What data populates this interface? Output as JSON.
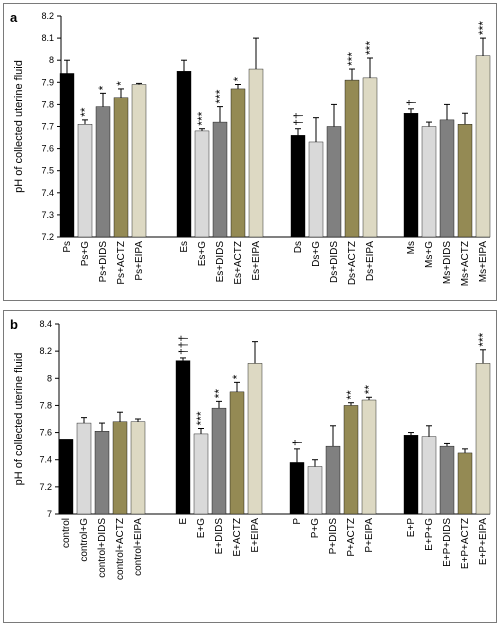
{
  "colors": {
    "black": "#000000",
    "light_gray": "#d9d9d9",
    "gray": "#808080",
    "olive": "#948a54",
    "beige": "#ddd9c3"
  },
  "chart_data": [
    {
      "type": "bar",
      "panel_label": "a",
      "ylabel": "pH of collected uterine fluid",
      "ylim": [
        7.2,
        8.2
      ],
      "yticks": [
        "7.2",
        "7.3",
        "7.4",
        "7.5",
        "7.6",
        "7.7",
        "7.8",
        "7.9",
        "8",
        "8.1",
        "8.2"
      ],
      "groups": [
        {
          "bars": [
            {
              "label": "Ps",
              "value": 7.94,
              "error": 0.06,
              "color": "black",
              "annotation": ""
            },
            {
              "label": "Ps+G",
              "value": 7.71,
              "error": 0.02,
              "color": "light_gray",
              "annotation": "**"
            },
            {
              "label": "Ps+DIDS",
              "value": 7.79,
              "error": 0.06,
              "color": "gray",
              "annotation": "*"
            },
            {
              "label": "Ps+ACTZ",
              "value": 7.83,
              "error": 0.04,
              "color": "olive",
              "annotation": "*"
            },
            {
              "label": "Ps+EIPA",
              "value": 7.89,
              "error": 0.005,
              "color": "beige",
              "annotation": ""
            }
          ]
        },
        {
          "bars": [
            {
              "label": "Es",
              "value": 7.95,
              "error": 0.05,
              "color": "black",
              "annotation": ""
            },
            {
              "label": "Es+G",
              "value": 7.68,
              "error": 0.01,
              "color": "light_gray",
              "annotation": "***"
            },
            {
              "label": "Es+DIDS",
              "value": 7.72,
              "error": 0.07,
              "color": "gray",
              "annotation": "***"
            },
            {
              "label": "Es+ACTZ",
              "value": 7.87,
              "error": 0.02,
              "color": "olive",
              "annotation": "*"
            },
            {
              "label": "Es+EIPA",
              "value": 7.96,
              "error": 0.14,
              "color": "beige",
              "annotation": ""
            }
          ]
        },
        {
          "bars": [
            {
              "label": "Ds",
              "value": 7.66,
              "error": 0.03,
              "color": "black",
              "annotation": "††"
            },
            {
              "label": "Ds+G",
              "value": 7.63,
              "error": 0.11,
              "color": "light_gray",
              "annotation": ""
            },
            {
              "label": "Ds+DIDS",
              "value": 7.7,
              "error": 0.1,
              "color": "gray",
              "annotation": ""
            },
            {
              "label": "Ds+ACTZ",
              "value": 7.91,
              "error": 0.05,
              "color": "olive",
              "annotation": "***"
            },
            {
              "label": "Ds+EIPA",
              "value": 7.92,
              "error": 0.09,
              "color": "beige",
              "annotation": "***"
            }
          ]
        },
        {
          "bars": [
            {
              "label": "Ms",
              "value": 7.76,
              "error": 0.02,
              "color": "black",
              "annotation": "†"
            },
            {
              "label": "Ms+G",
              "value": 7.7,
              "error": 0.02,
              "color": "light_gray",
              "annotation": ""
            },
            {
              "label": "Ms+DIDS",
              "value": 7.73,
              "error": 0.07,
              "color": "gray",
              "annotation": ""
            },
            {
              "label": "Ms+ACTZ",
              "value": 7.71,
              "error": 0.05,
              "color": "olive",
              "annotation": ""
            },
            {
              "label": "Ms+EIPA",
              "value": 8.02,
              "error": 0.08,
              "color": "beige",
              "annotation": "***"
            }
          ]
        }
      ]
    },
    {
      "type": "bar",
      "panel_label": "b",
      "ylabel": "pH of collected uterine fluid",
      "ylim": [
        7.0,
        8.4
      ],
      "yticks": [
        "7",
        "7.2",
        "7.4",
        "7.6",
        "7.8",
        "8",
        "8.2",
        "8.4"
      ],
      "groups": [
        {
          "bars": [
            {
              "label": "control",
              "value": 7.55,
              "error": 0.0,
              "color": "black",
              "annotation": ""
            },
            {
              "label": "control+G",
              "value": 7.67,
              "error": 0.04,
              "color": "light_gray",
              "annotation": ""
            },
            {
              "label": "control+DIDS",
              "value": 7.61,
              "error": 0.06,
              "color": "gray",
              "annotation": ""
            },
            {
              "label": "control+ACTZ",
              "value": 7.68,
              "error": 0.07,
              "color": "olive",
              "annotation": ""
            },
            {
              "label": "control+EIPA",
              "value": 7.68,
              "error": 0.02,
              "color": "beige",
              "annotation": ""
            }
          ]
        },
        {
          "bars": [
            {
              "label": "E",
              "value": 8.13,
              "error": 0.02,
              "color": "black",
              "annotation": "†††"
            },
            {
              "label": "E+G",
              "value": 7.59,
              "error": 0.04,
              "color": "light_gray",
              "annotation": "***"
            },
            {
              "label": "E+DIDS",
              "value": 7.78,
              "error": 0.05,
              "color": "gray",
              "annotation": "**"
            },
            {
              "label": "E+ACTZ",
              "value": 7.9,
              "error": 0.07,
              "color": "olive",
              "annotation": "*"
            },
            {
              "label": "E+EIPA",
              "value": 8.11,
              "error": 0.16,
              "color": "beige",
              "annotation": ""
            }
          ]
        },
        {
          "bars": [
            {
              "label": "P",
              "value": 7.38,
              "error": 0.1,
              "color": "black",
              "annotation": "†"
            },
            {
              "label": "P+G",
              "value": 7.35,
              "error": 0.05,
              "color": "light_gray",
              "annotation": ""
            },
            {
              "label": "P+DIDS",
              "value": 7.5,
              "error": 0.15,
              "color": "gray",
              "annotation": ""
            },
            {
              "label": "P+ACTZ",
              "value": 7.8,
              "error": 0.02,
              "color": "olive",
              "annotation": "**"
            },
            {
              "label": "P+EIPA",
              "value": 7.84,
              "error": 0.02,
              "color": "beige",
              "annotation": "**"
            }
          ]
        },
        {
          "bars": [
            {
              "label": "E+P",
              "value": 7.58,
              "error": 0.02,
              "color": "black",
              "annotation": ""
            },
            {
              "label": "E+P+G",
              "value": 7.57,
              "error": 0.08,
              "color": "light_gray",
              "annotation": ""
            },
            {
              "label": "E+P+DIDS",
              "value": 7.5,
              "error": 0.02,
              "color": "gray",
              "annotation": ""
            },
            {
              "label": "E+P+ACTZ",
              "value": 7.45,
              "error": 0.03,
              "color": "olive",
              "annotation": ""
            },
            {
              "label": "E+P+EIPA",
              "value": 8.11,
              "error": 0.1,
              "color": "beige",
              "annotation": "***"
            }
          ]
        }
      ]
    }
  ]
}
